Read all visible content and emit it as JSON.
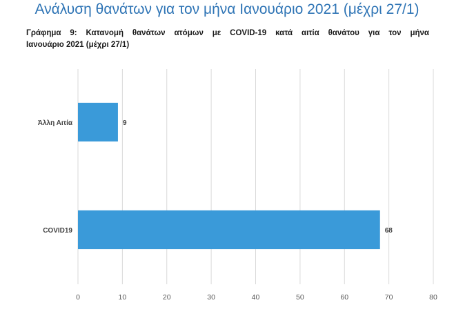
{
  "heading": "Ανάλυση θανάτων για τον μήνα Ιανουάριο 2021 (μέχρι 27/1)",
  "caption": {
    "line1": "Γράφημα 9: Κατανομή θανάτων ατόμων με COVID-19 κατά αιτία θανάτου για τον μήνα",
    "line2": "Ιανουάριο 2021 (μέχρι 27/1)"
  },
  "colors": {
    "bar": "#3a9ad9",
    "grid": "#d9d9d9",
    "axis_text": "#595959",
    "heading": "#2e74b5"
  },
  "chart_data": {
    "type": "bar",
    "orientation": "horizontal",
    "categories": [
      "Άλλη Αιτία",
      "COVID19"
    ],
    "values": [
      9,
      68
    ],
    "xlim": [
      0,
      80
    ],
    "xticks": [
      0,
      10,
      20,
      30,
      40,
      50,
      60,
      70,
      80
    ],
    "grid": true,
    "data_labels": true,
    "legend": "none"
  }
}
